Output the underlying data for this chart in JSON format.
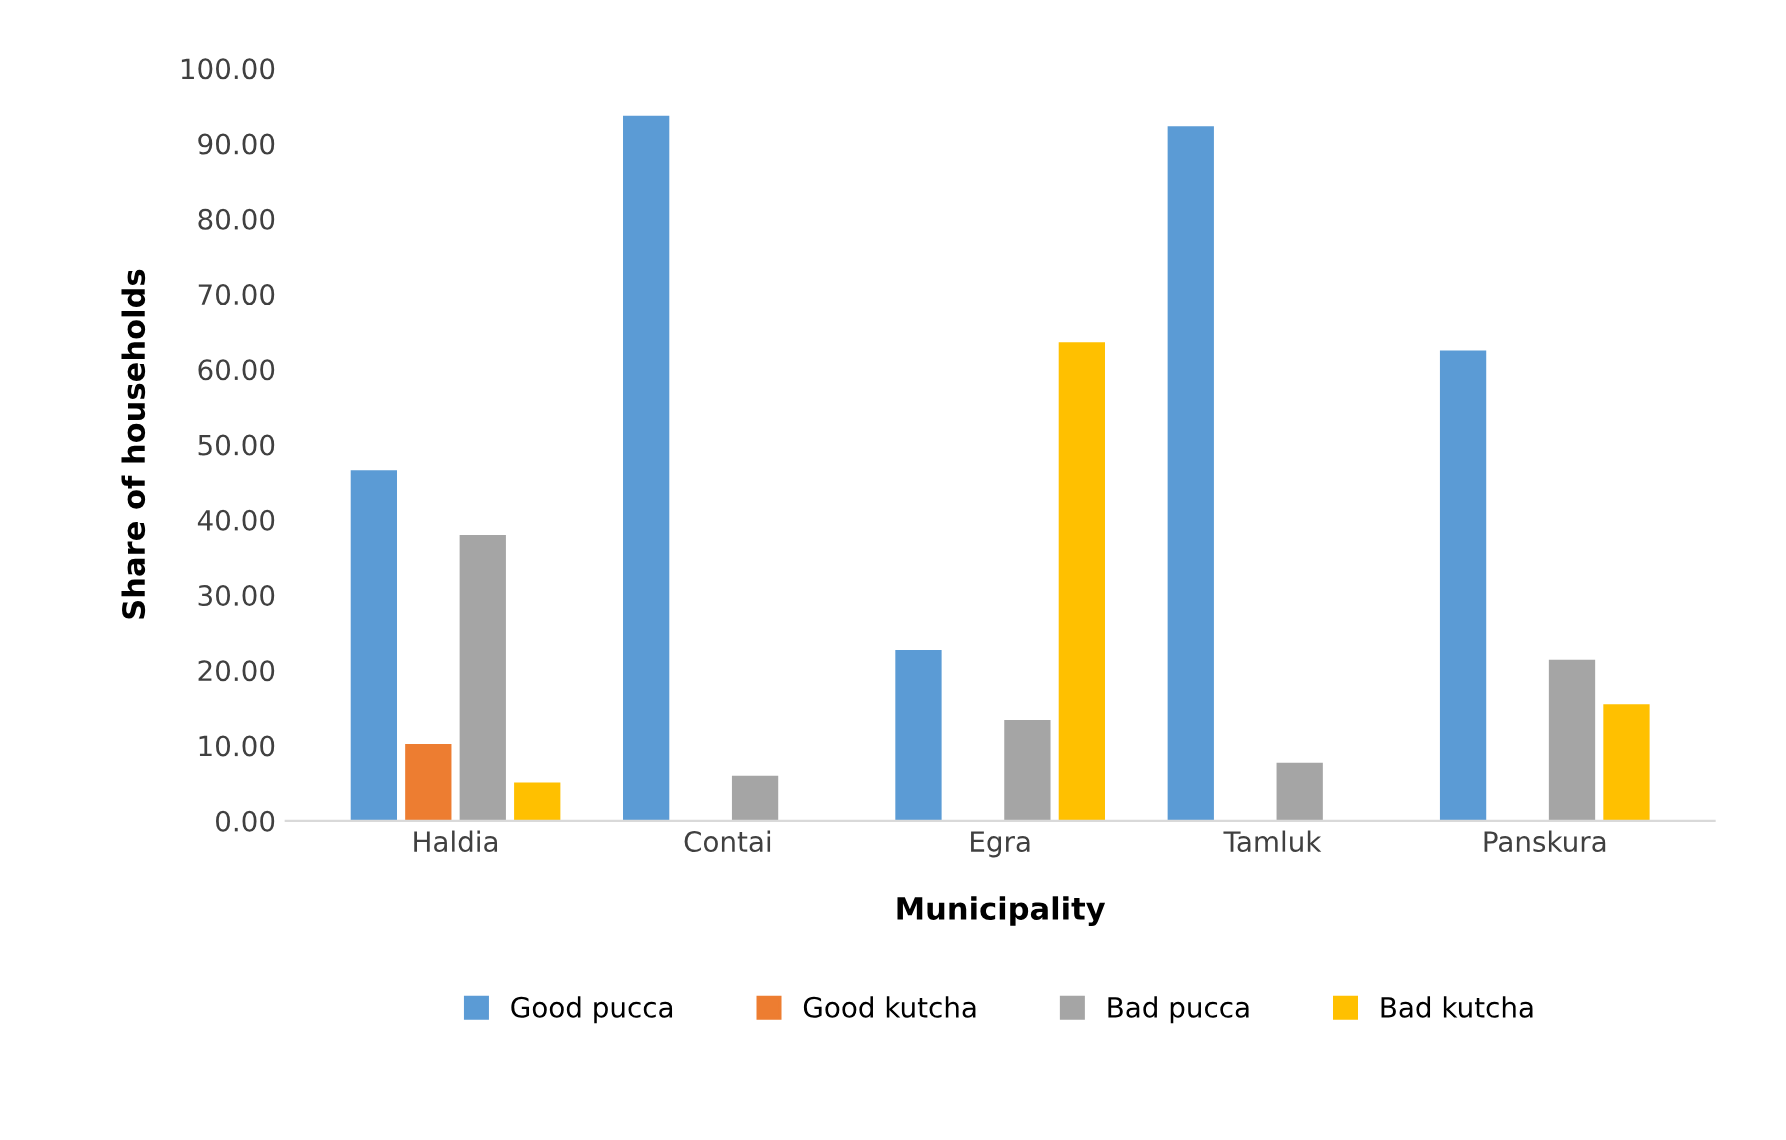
{
  "chart_data": {
    "type": "bar",
    "xlabel": "Municipality",
    "ylabel": "Share of households",
    "categories": [
      "Haldia",
      "Contai",
      "Egra",
      "Tamluk",
      "Panskura"
    ],
    "series": [
      {
        "name": "Good pucca",
        "color": "#5b9bd5",
        "values": [
          46.6,
          93.7,
          22.7,
          92.3,
          62.5
        ]
      },
      {
        "name": "Good kutcha",
        "color": "#ed7d31",
        "values": [
          10.2,
          0,
          0,
          0,
          0
        ]
      },
      {
        "name": "Bad pucca",
        "color": "#a5a5a5",
        "values": [
          38.0,
          6.0,
          13.4,
          7.7,
          21.4
        ]
      },
      {
        "name": "Bad kutcha",
        "color": "#ffc000",
        "values": [
          5.1,
          0,
          63.6,
          0,
          15.5
        ]
      }
    ],
    "ylim": [
      0,
      100
    ],
    "yticks": [
      {
        "value": 0,
        "label": "0.00"
      },
      {
        "value": 10,
        "label": "10.00"
      },
      {
        "value": 20,
        "label": "20.00"
      },
      {
        "value": 30,
        "label": "30.00"
      },
      {
        "value": 40,
        "label": "40.00"
      },
      {
        "value": 50,
        "label": "50.00"
      },
      {
        "value": 60,
        "label": "60.00"
      },
      {
        "value": 70,
        "label": "70.00"
      },
      {
        "value": 80,
        "label": "80.00"
      },
      {
        "value": 90,
        "label": "90.00"
      },
      {
        "value": 100,
        "label": "100.00"
      }
    ],
    "grid": false,
    "legend": "bottom"
  }
}
